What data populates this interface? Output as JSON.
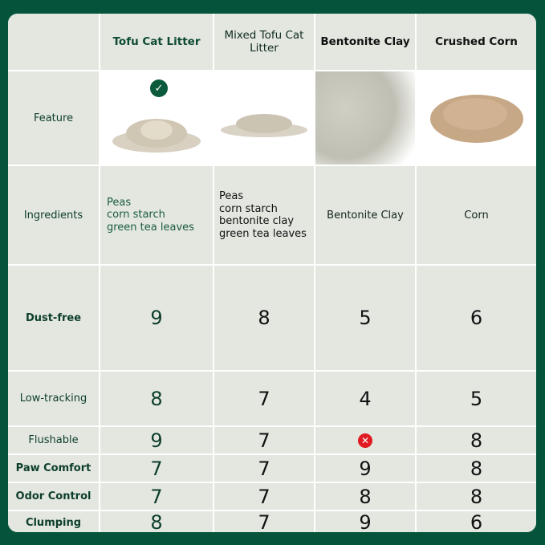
{
  "columns": [
    "Tofu Cat Litter",
    "Mixed Tofu Cat Litter",
    "Bentonite Clay",
    "Crushed Corn"
  ],
  "rows": {
    "feature": "Feature",
    "ingredients": {
      "label": "Ingredients",
      "values": [
        "Peas\ncorn starch\ngreen tea leaves",
        "Peas\ncorn starch\nbentonite clay\ngreen tea leaves",
        "Bentonite Clay",
        "Corn"
      ]
    },
    "dust_free": {
      "label": "Dust-free",
      "values": [
        "9",
        "8",
        "5",
        "6"
      ]
    },
    "low_tracking": {
      "label": "Low-tracking",
      "values": [
        "8",
        "7",
        "4",
        "5"
      ]
    },
    "flushable": {
      "label": "Flushable",
      "values": [
        "9",
        "7",
        "✕",
        "8"
      ]
    },
    "paw_comfort": {
      "label": "Paw Comfort",
      "values": [
        "7",
        "7",
        "9",
        "8"
      ]
    },
    "odor_control": {
      "label": "Odor Control",
      "values": [
        "7",
        "7",
        "8",
        "8"
      ]
    },
    "clumping": {
      "label": "Clumping",
      "values": [
        "8",
        "7",
        "9",
        "6"
      ]
    }
  },
  "icons": {
    "recommended": "check-circle-icon",
    "not_flushable": "x-circle-icon"
  },
  "colors": {
    "background": "#04533a",
    "cell": "#e3e7e0",
    "check": "#0b5a3c",
    "cross": "#e01b22"
  }
}
